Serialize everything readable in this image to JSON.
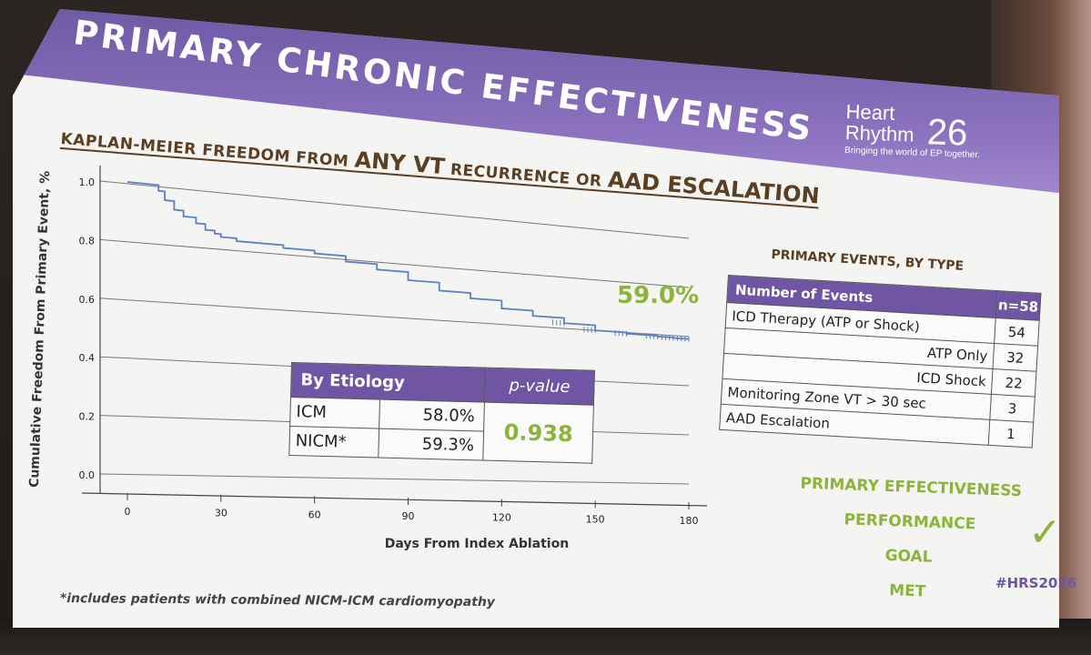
{
  "slide": {
    "title": "PRIMARY CHRONIC EFFECTIVENESS",
    "logo": {
      "line1": "Heart",
      "line2": "Rhythm",
      "number": "26",
      "tagline": "Bringing the world of EP together."
    },
    "subtitle": {
      "part1": "KAPLAN-MEIER FREEDOM FROM ",
      "part2": "ANY VT",
      "part3": " RECURRENCE OR ",
      "part4": "AAD ESCALATION"
    },
    "footnote": "*includes patients with combined NICM-ICM cardiomyopathy",
    "hashtag": "#HRS2026"
  },
  "chart_data": {
    "type": "line",
    "xlabel": "Days From Index Ablation",
    "ylabel": "Cumulative Freedom From Primary Event, %",
    "xlim": [
      0,
      180
    ],
    "ylim": [
      0.0,
      1.0
    ],
    "xticks": [
      "0",
      "30",
      "60",
      "90",
      "120",
      "150",
      "180"
    ],
    "yticks": [
      "0.0",
      "0.2",
      "0.4",
      "0.6",
      "0.8",
      "1.0"
    ],
    "grid": true,
    "annotation": "59.0%",
    "series": [
      {
        "color": "#5b80c4",
        "x": [
          0,
          9,
          10,
          12,
          15,
          18,
          22,
          25,
          28,
          30,
          35,
          40,
          50,
          60,
          70,
          80,
          90,
          100,
          110,
          120,
          130,
          140,
          150,
          160,
          170,
          175,
          180
        ],
        "y": [
          1.0,
          1.0,
          0.98,
          0.95,
          0.92,
          0.9,
          0.88,
          0.86,
          0.85,
          0.84,
          0.83,
          0.83,
          0.82,
          0.81,
          0.79,
          0.77,
          0.74,
          0.71,
          0.69,
          0.66,
          0.64,
          0.62,
          0.6,
          0.595,
          0.592,
          0.59,
          0.59
        ]
      }
    ]
  },
  "etiology_table": {
    "header": "By Etiology",
    "pvalue_header": "p-value",
    "rows": [
      {
        "label": "ICM",
        "value": "58.0%"
      },
      {
        "label": "NICM*",
        "value": "59.3%"
      }
    ],
    "pvalue": "0.938"
  },
  "primary_events": {
    "heading": "PRIMARY EVENTS, BY TYPE",
    "header_label": "Number of Events",
    "header_n": "n=58",
    "rows": [
      {
        "label": "ICD Therapy (ATP or Shock)",
        "value": "54",
        "align": "left"
      },
      {
        "label": "ATP Only",
        "value": "32",
        "align": "right"
      },
      {
        "label": "ICD Shock",
        "value": "22",
        "align": "right"
      },
      {
        "label": "Monitoring Zone VT > 30 sec",
        "value": "3",
        "align": "left"
      },
      {
        "label": "AAD Escalation",
        "value": "1",
        "align": "left"
      }
    ]
  },
  "goal": {
    "line1": "PRIMARY EFFECTIVENESS",
    "line2": "PERFORMANCE",
    "line3": "GOAL",
    "line4": "MET",
    "check": "✓"
  },
  "colors": {
    "banner": "#7a62b0",
    "accent_green": "#8db43a",
    "table_header": "#6f55a3",
    "km_line": "#5b80c4"
  }
}
